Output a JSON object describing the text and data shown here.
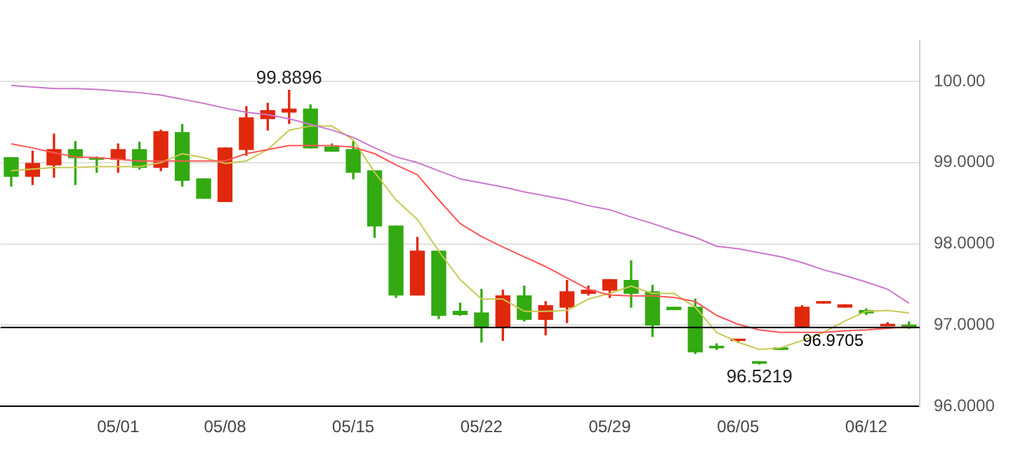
{
  "chart_data": {
    "type": "candlestick",
    "categories": [
      null,
      null,
      null,
      null,
      null,
      "05/01",
      null,
      null,
      null,
      null,
      "05/08",
      null,
      null,
      null,
      null,
      null,
      "05/15",
      null,
      null,
      null,
      null,
      null,
      "05/22",
      null,
      null,
      null,
      null,
      null,
      "05/29",
      null,
      null,
      null,
      null,
      null,
      "06/05",
      null,
      null,
      null,
      null,
      null,
      "06/12",
      null,
      null
    ],
    "ohlc": [
      [
        99.06,
        99.06,
        98.71,
        98.83
      ],
      [
        98.83,
        99.14,
        98.73,
        98.99
      ],
      [
        98.97,
        99.35,
        98.82,
        99.16
      ],
      [
        99.16,
        99.26,
        98.73,
        99.06
      ],
      [
        99.06,
        99.07,
        98.88,
        99.04
      ],
      [
        99.04,
        99.23,
        98.88,
        99.16
      ],
      [
        99.16,
        99.25,
        98.92,
        98.94
      ],
      [
        98.94,
        99.4,
        98.9,
        99.38
      ],
      [
        99.37,
        99.47,
        98.71,
        98.78
      ],
      [
        98.8,
        98.8,
        98.56,
        98.56
      ],
      [
        98.52,
        99.18,
        98.52,
        99.18
      ],
      [
        99.16,
        99.69,
        99.09,
        99.55
      ],
      [
        99.54,
        99.73,
        99.4,
        99.64
      ],
      [
        99.62,
        99.8896,
        99.48,
        99.66
      ],
      [
        99.66,
        99.71,
        99.18,
        99.18
      ],
      [
        99.19,
        99.23,
        99.14,
        99.14
      ],
      [
        99.16,
        99.26,
        98.8,
        98.88
      ],
      [
        98.9,
        98.9,
        98.08,
        98.22
      ],
      [
        98.22,
        98.22,
        97.34,
        97.37
      ],
      [
        97.37,
        98.08,
        97.37,
        97.91
      ],
      [
        97.91,
        97.91,
        97.08,
        97.12
      ],
      [
        97.17,
        97.27,
        97.12,
        97.13
      ],
      [
        97.15,
        97.44,
        96.79,
        96.98
      ],
      [
        96.98,
        97.43,
        96.81,
        97.36
      ],
      [
        97.36,
        97.48,
        97.05,
        97.07
      ],
      [
        97.07,
        97.29,
        96.88,
        97.24
      ],
      [
        97.22,
        97.55,
        97.03,
        97.41
      ],
      [
        97.39,
        97.48,
        97.37,
        97.43
      ],
      [
        97.43,
        97.56,
        97.34,
        97.56
      ],
      [
        97.55,
        97.79,
        97.22,
        97.39
      ],
      [
        97.41,
        97.49,
        96.86,
        97
      ],
      [
        97.22,
        97.22,
        97.19,
        97.19
      ],
      [
        97.22,
        97.32,
        96.65,
        96.67
      ],
      [
        96.74,
        96.77,
        96.7,
        96.72
      ],
      [
        96.81,
        96.82,
        96.79,
        96.82
      ],
      [
        96.55,
        96.55,
        96.5219,
        96.53
      ],
      [
        96.72,
        96.72,
        96.7,
        96.7
      ],
      [
        96.98,
        97.24,
        96.98,
        97.22
      ],
      [
        97.27,
        97.29,
        97.27,
        97.29
      ],
      [
        97.22,
        97.25,
        97.22,
        97.25
      ],
      [
        97.18,
        97.2,
        97.13,
        97.15
      ],
      [
        96.99,
        97.03,
        96.99,
        97.01
      ],
      [
        97,
        97.04,
        96.96,
        96.97
      ]
    ],
    "colors": [
      "#33aa11",
      "#e0280c",
      "#e0280c",
      "#33aa11",
      "#33aa11",
      "#e0280c",
      "#33aa11",
      "#e0280c",
      "#33aa11",
      "#33aa11",
      "#e0280c",
      "#e0280c",
      "#e0280c",
      "#e0280c",
      "#33aa11",
      "#33aa11",
      "#33aa11",
      "#33aa11",
      "#33aa11",
      "#e0280c",
      "#33aa11",
      "#33aa11",
      "#33aa11",
      "#e0280c",
      "#33aa11",
      "#e0280c",
      "#e0280c",
      "#e0280c",
      "#e0280c",
      "#33aa11",
      "#33aa11",
      "#33aa11",
      "#33aa11",
      "#33aa11",
      "#e0280c",
      "#33aa11",
      "#33aa11",
      "#e0280c",
      "#e0280c",
      "#e0280c",
      "#33aa11",
      "#e0280c",
      "#33aa11"
    ],
    "series": [
      {
        "type": "line",
        "color": "#cc77cc",
        "values": [
          99.95,
          99.93,
          99.91,
          99.91,
          99.9,
          99.88,
          99.86,
          99.83,
          99.78,
          99.73,
          99.67,
          99.62,
          99.59,
          99.54,
          99.47,
          99.4,
          99.31,
          99.18,
          99.07,
          99,
          98.9,
          98.8,
          98.75,
          98.7,
          98.64,
          98.59,
          98.54,
          98.47,
          98.42,
          98.33,
          98.25,
          98.16,
          98.08,
          97.97,
          97.94,
          97.89,
          97.84,
          97.77,
          97.68,
          97.61,
          97.53,
          97.44,
          97.27
        ]
      },
      {
        "type": "line",
        "color": "#ff5555",
        "values": [
          99.23,
          99.18,
          99.12,
          99.07,
          99.06,
          99.04,
          99.02,
          99.02,
          99.02,
          99.02,
          99.02,
          99.11,
          99.16,
          99.21,
          99.21,
          99.21,
          99.19,
          99.11,
          98.97,
          98.85,
          98.54,
          98.25,
          98.09,
          97.96,
          97.84,
          97.72,
          97.58,
          97.44,
          97.37,
          97.36,
          97.36,
          97.34,
          97.29,
          97.12,
          97.01,
          96.94,
          96.91,
          96.91,
          96.91,
          96.93,
          96.94,
          96.96,
          96.98
        ]
      },
      {
        "type": "line",
        "color": "#c8c850",
        "values": [
          98.9,
          98.92,
          98.94,
          98.94,
          98.95,
          98.95,
          98.95,
          99,
          99.11,
          99.06,
          98.99,
          99.02,
          99.16,
          99.4,
          99.45,
          99.45,
          99.28,
          98.88,
          98.54,
          98.3,
          97.91,
          97.56,
          97.32,
          97.32,
          97.17,
          97.17,
          97.18,
          97.32,
          97.39,
          97.48,
          97.39,
          97.39,
          97.22,
          96.91,
          96.79,
          96.7,
          96.72,
          96.81,
          96.91,
          97.05,
          97.17,
          97.18,
          97.15
        ]
      }
    ],
    "ylim": [
      96,
      100.5
    ],
    "yticks": [
      {
        "value": 96,
        "label": "96.0000"
      },
      {
        "value": 97,
        "label": "97.0000"
      },
      {
        "value": 98,
        "label": "98.0000"
      },
      {
        "value": 99,
        "label": "99.0000"
      },
      {
        "value": 100,
        "label": "100.00"
      }
    ],
    "grid": "y",
    "annotations": [
      {
        "text": "99.8896",
        "y": 99.8896
      },
      {
        "text": "96.5219",
        "y": 96.5219
      }
    ],
    "ref_lines": [
      {
        "axis": "y",
        "value": 96.9705,
        "label": "96.9705",
        "color": "#000000"
      }
    ]
  }
}
